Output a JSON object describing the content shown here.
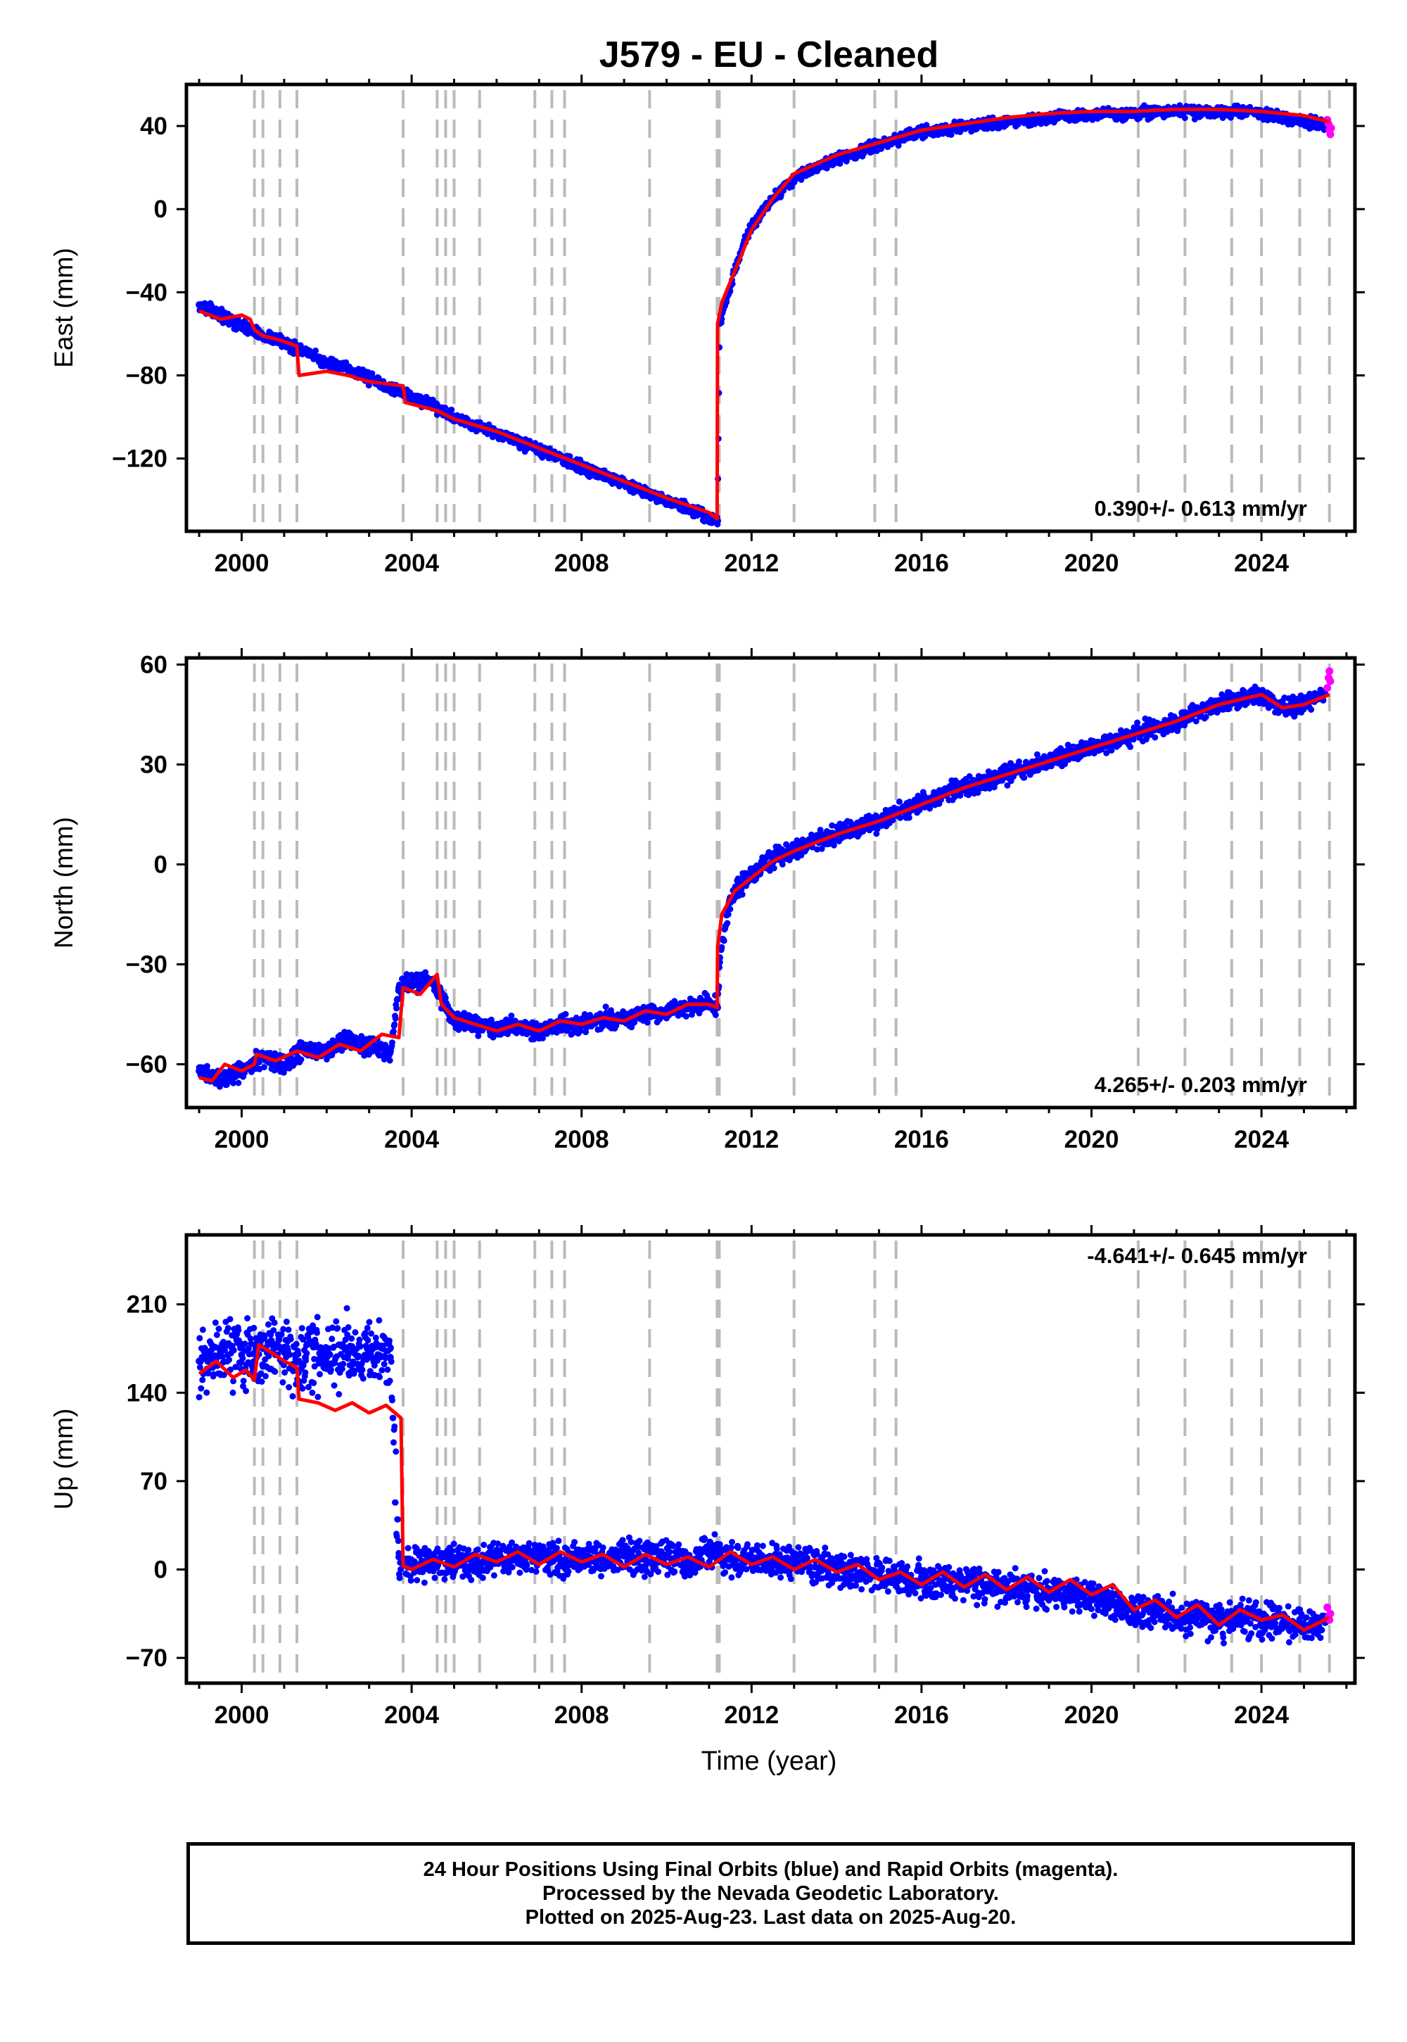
{
  "title": "J579  - EU - Cleaned",
  "xlabel": "Time (year)",
  "footer": {
    "line1": "24 Hour Positions Using Final Orbits (blue) and Rapid Orbits (magenta).",
    "line2": "Processed by the Nevada Geodetic Laboratory.",
    "line3": "Plotted on 2025-Aug-23. Last data on 2025-Aug-20."
  },
  "colors": {
    "final_orbits": "#0000ff",
    "rapid_orbits": "#ff00ff",
    "model": "#ff0000",
    "steps": "#bbbbbb"
  },
  "chart_data": [
    {
      "type": "scatter",
      "component": "east",
      "ylabel": "East (mm)",
      "xlim": [
        1998.7,
        2026.2
      ],
      "ylim": [
        -155,
        60
      ],
      "xticks": [
        2000,
        2004,
        2008,
        2012,
        2016,
        2020,
        2024
      ],
      "yticks": [
        40,
        0,
        -40,
        -80,
        -120
      ],
      "rate_label": "0.390+/- 0.613 mm/yr",
      "rate_position": "bottom-right",
      "steps": [
        2000.3,
        2000.5,
        2000.9,
        2001.3,
        2003.8,
        2004.6,
        2004.8,
        2005.0,
        2005.6,
        2006.9,
        2007.3,
        2007.6,
        2009.6,
        2011.19,
        2011.24,
        2013.0,
        2014.9,
        2015.4,
        2021.1,
        2022.2,
        2023.3,
        2024.0,
        2024.9,
        2025.6
      ],
      "series": [
        {
          "label": "final",
          "x": [
            1999.0,
            1999.5,
            2000.0,
            2000.4,
            2001.0,
            2001.5,
            2002.0,
            2002.5,
            2003.0,
            2003.5,
            2004.0,
            2004.5,
            2005.0,
            2005.5,
            2006.0,
            2006.5,
            2007.0,
            2007.5,
            2008.0,
            2008.5,
            2009.0,
            2009.5,
            2010.0,
            2010.5,
            2011.0,
            2011.2,
            2011.25,
            2011.4,
            2011.6,
            2011.8,
            2012.0,
            2012.3,
            2012.6,
            2013.0,
            2013.5,
            2014.0,
            2014.5,
            2015.0,
            2015.5,
            2016.0,
            2016.5,
            2017.0,
            2017.5,
            2018.0,
            2018.5,
            2019.0,
            2019.5,
            2020.0,
            2020.5,
            2021.0,
            2021.5,
            2022.0,
            2022.5,
            2023.0,
            2023.5,
            2024.0,
            2024.5,
            2025.0,
            2025.5
          ],
          "y": [
            -46,
            -51,
            -56,
            -60,
            -64,
            -69,
            -74,
            -77,
            -81,
            -86,
            -90,
            -95,
            -100,
            -104,
            -108,
            -112,
            -116,
            -119,
            -124,
            -128,
            -132,
            -136,
            -140,
            -144,
            -148,
            -150,
            -55,
            -44,
            -30,
            -18,
            -8,
            0,
            7,
            15,
            20,
            24,
            27,
            31,
            34,
            37,
            38,
            40,
            41,
            42,
            43,
            44,
            45,
            45,
            46,
            46,
            47,
            47,
            47,
            47,
            47,
            46,
            44,
            42,
            40
          ]
        },
        {
          "label": "rapid",
          "x": [
            2025.55,
            2025.58,
            2025.6,
            2025.62,
            2025.64
          ],
          "y": [
            43,
            41,
            38,
            36,
            39
          ]
        }
      ],
      "model": {
        "x": [
          1999.0,
          1999.5,
          2000.0,
          2000.2,
          2000.3,
          2000.5,
          2000.9,
          2001.3,
          2001.35,
          2002.0,
          2002.5,
          2003.0,
          2003.8,
          2003.85,
          2004.6,
          2005.0,
          2006.0,
          2007.0,
          2008.0,
          2009.0,
          2010.0,
          2011.0,
          2011.19,
          2011.2,
          2011.3,
          2011.6,
          2012.0,
          2012.5,
          2013.0,
          2014.0,
          2015.0,
          2016.0,
          2017.0,
          2018.0,
          2019.0,
          2020.0,
          2021.0,
          2022.0,
          2023.0,
          2024.0,
          2025.0,
          2025.6
        ],
        "y": [
          -49,
          -53,
          -51,
          -53,
          -58,
          -61,
          -63,
          -66,
          -80,
          -78,
          -80,
          -83,
          -85,
          -93,
          -97,
          -101,
          -107,
          -115,
          -123,
          -131,
          -139,
          -146,
          -149,
          -55,
          -45,
          -30,
          -10,
          5,
          17,
          26,
          32,
          38,
          41,
          44,
          46,
          47,
          47,
          48,
          48,
          47,
          45,
          42
        ]
      }
    },
    {
      "type": "scatter",
      "component": "north",
      "ylabel": "North (mm)",
      "xlim": [
        1998.7,
        2026.2
      ],
      "ylim": [
        -73,
        62
      ],
      "xticks": [
        2000,
        2004,
        2008,
        2012,
        2016,
        2020,
        2024
      ],
      "yticks": [
        60,
        30,
        0,
        -30,
        -60
      ],
      "rate_label": "4.265+/- 0.203 mm/yr",
      "rate_position": "bottom-right",
      "steps": [
        2000.3,
        2000.5,
        2000.9,
        2001.3,
        2003.8,
        2004.6,
        2004.8,
        2005.0,
        2005.6,
        2006.9,
        2007.3,
        2007.6,
        2009.6,
        2011.19,
        2011.24,
        2013.0,
        2014.9,
        2015.4,
        2021.1,
        2022.2,
        2023.3,
        2024.0,
        2024.9,
        2025.6
      ],
      "series": [
        {
          "label": "final",
          "x": [
            1999.0,
            1999.5,
            2000.0,
            2000.5,
            2001.0,
            2001.5,
            2002.0,
            2002.5,
            2003.0,
            2003.5,
            2003.7,
            2004.0,
            2004.5,
            2004.8,
            2005.0,
            2005.5,
            2006.0,
            2006.5,
            2007.0,
            2007.5,
            2008.0,
            2008.5,
            2009.0,
            2009.5,
            2010.0,
            2010.5,
            2011.0,
            2011.2,
            2011.25,
            2011.5,
            2012.0,
            2012.5,
            2013.0,
            2013.5,
            2014.0,
            2014.5,
            2015.0,
            2015.5,
            2016.0,
            2016.5,
            2017.0,
            2017.5,
            2018.0,
            2018.5,
            2019.0,
            2019.5,
            2020.0,
            2020.5,
            2021.0,
            2021.5,
            2022.0,
            2022.5,
            2023.0,
            2023.5,
            2024.0,
            2024.5,
            2025.0,
            2025.5
          ],
          "y": [
            -62,
            -64,
            -62,
            -58,
            -60,
            -55,
            -56,
            -52,
            -55,
            -56,
            -37,
            -35,
            -35,
            -42,
            -47,
            -48,
            -50,
            -49,
            -50,
            -48,
            -48,
            -46,
            -47,
            -45,
            -44,
            -43,
            -41,
            -43,
            -28,
            -10,
            -3,
            2,
            4,
            7,
            9,
            11,
            13,
            16,
            18,
            21,
            23,
            25,
            27,
            29,
            31,
            33,
            35,
            37,
            39,
            41,
            43,
            46,
            48,
            50,
            51,
            47,
            48,
            51
          ]
        },
        {
          "label": "rapid",
          "x": [
            2025.55,
            2025.58,
            2025.6,
            2025.62
          ],
          "y": [
            53,
            56,
            58,
            55
          ]
        }
      ],
      "model": {
        "x": [
          1999.0,
          1999.3,
          1999.6,
          2000.0,
          2000.3,
          2000.35,
          2000.8,
          2001.3,
          2001.8,
          2002.3,
          2002.8,
          2003.3,
          2003.7,
          2003.8,
          2004.2,
          2004.6,
          2004.7,
          2005.0,
          2005.5,
          2006.0,
          2006.5,
          2007.0,
          2007.5,
          2008.0,
          2008.5,
          2009.0,
          2009.5,
          2010.0,
          2010.5,
          2011.0,
          2011.19,
          2011.2,
          2011.3,
          2011.6,
          2012.0,
          2012.5,
          2013.0,
          2014.0,
          2015.0,
          2016.0,
          2017.0,
          2018.0,
          2019.0,
          2020.0,
          2021.0,
          2022.0,
          2023.0,
          2024.0,
          2024.5,
          2025.0,
          2025.6
        ],
        "y": [
          -64,
          -65,
          -60,
          -62,
          -60,
          -57,
          -59,
          -56,
          -58,
          -54,
          -56,
          -51,
          -52,
          -37,
          -39,
          -33,
          -42,
          -46,
          -48,
          -50,
          -48,
          -50,
          -47,
          -48,
          -46,
          -47,
          -44,
          -45,
          -42,
          -42,
          -43,
          -25,
          -15,
          -8,
          -4,
          1,
          4,
          9,
          13,
          18,
          23,
          27,
          31,
          35,
          39,
          43,
          48,
          51,
          47,
          48,
          51
        ]
      }
    },
    {
      "type": "scatter",
      "component": "up",
      "ylabel": "Up (mm)",
      "xlabel": "Time (year)",
      "xlim": [
        1998.7,
        2026.2
      ],
      "ylim": [
        -90,
        265
      ],
      "xticks": [
        2000,
        2004,
        2008,
        2012,
        2016,
        2020,
        2024
      ],
      "yticks": [
        210,
        140,
        70,
        0,
        -70
      ],
      "rate_label": "-4.641+/- 0.645 mm/yr",
      "rate_position": "top-right",
      "steps": [
        2000.3,
        2000.5,
        2000.9,
        2001.3,
        2003.8,
        2004.6,
        2004.8,
        2005.0,
        2005.6,
        2006.9,
        2007.3,
        2007.6,
        2009.6,
        2011.19,
        2011.24,
        2013.0,
        2014.9,
        2015.4,
        2021.1,
        2022.2,
        2023.3,
        2024.0,
        2024.9,
        2025.6
      ],
      "series": [
        {
          "label": "final",
          "x": [
            1999.0,
            1999.5,
            2000.0,
            2000.5,
            2001.0,
            2001.5,
            2002.0,
            2002.5,
            2003.0,
            2003.5,
            2003.7,
            2004.0,
            2004.5,
            2005.0,
            2005.5,
            2006.0,
            2006.5,
            2007.0,
            2007.5,
            2008.0,
            2008.5,
            2009.0,
            2009.5,
            2010.0,
            2010.5,
            2011.0,
            2011.5,
            2012.0,
            2012.5,
            2013.0,
            2013.5,
            2014.0,
            2014.5,
            2015.0,
            2015.5,
            2016.0,
            2016.5,
            2017.0,
            2017.5,
            2018.0,
            2018.5,
            2019.0,
            2019.5,
            2020.0,
            2020.5,
            2021.0,
            2021.5,
            2022.0,
            2022.5,
            2023.0,
            2023.5,
            2024.0,
            2024.5,
            2025.0,
            2025.5
          ],
          "y": [
            165,
            172,
            170,
            175,
            172,
            168,
            174,
            170,
            172,
            168,
            10,
            2,
            5,
            8,
            6,
            10,
            9,
            12,
            8,
            10,
            8,
            12,
            9,
            10,
            7,
            12,
            10,
            8,
            5,
            6,
            2,
            0,
            -3,
            -5,
            -8,
            -6,
            -9,
            -10,
            -12,
            -14,
            -16,
            -18,
            -20,
            -22,
            -25,
            -35,
            -30,
            -40,
            -35,
            -45,
            -38,
            -40,
            -42,
            -45,
            -42
          ]
        },
        {
          "label": "rapid",
          "x": [
            2025.55,
            2025.58,
            2025.6,
            2025.62
          ],
          "y": [
            -30,
            -38,
            -40,
            -35
          ]
        }
      ],
      "model": {
        "x": [
          1999.0,
          1999.4,
          1999.8,
          2000.1,
          2000.3,
          2000.4,
          2000.7,
          2001.0,
          2001.3,
          2001.35,
          2001.8,
          2002.2,
          2002.6,
          2003.0,
          2003.4,
          2003.75,
          2003.8,
          2004.0,
          2004.5,
          2005.0,
          2005.5,
          2006.0,
          2006.5,
          2007.0,
          2007.5,
          2008.0,
          2008.5,
          2009.0,
          2009.5,
          2010.0,
          2010.5,
          2011.0,
          2011.5,
          2012.0,
          2012.5,
          2013.0,
          2013.5,
          2014.0,
          2014.5,
          2015.0,
          2015.5,
          2016.0,
          2016.5,
          2017.0,
          2017.5,
          2018.0,
          2018.5,
          2019.0,
          2019.5,
          2020.0,
          2020.5,
          2021.0,
          2021.5,
          2022.0,
          2022.5,
          2023.0,
          2023.5,
          2024.0,
          2024.5,
          2025.0,
          2025.6
        ],
        "y": [
          155,
          165,
          152,
          158,
          150,
          178,
          172,
          165,
          160,
          135,
          132,
          126,
          132,
          124,
          130,
          120,
          3,
          0,
          8,
          2,
          12,
          6,
          14,
          4,
          14,
          6,
          12,
          2,
          12,
          4,
          10,
          2,
          14,
          4,
          10,
          0,
          8,
          -2,
          4,
          -8,
          -2,
          -12,
          -2,
          -14,
          -4,
          -16,
          -6,
          -18,
          -8,
          -20,
          -12,
          -32,
          -24,
          -38,
          -28,
          -44,
          -32,
          -40,
          -36,
          -48,
          -38
        ]
      }
    }
  ]
}
